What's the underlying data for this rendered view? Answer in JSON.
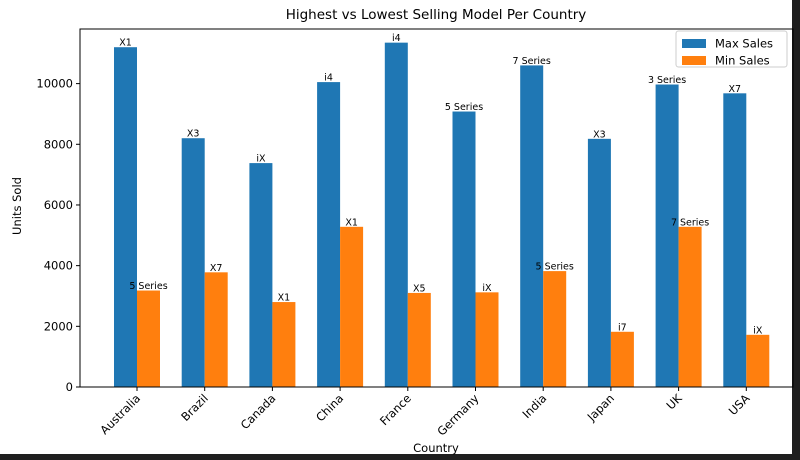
{
  "chart_data": {
    "type": "bar",
    "title": "Highest vs Lowest Selling Model Per Country",
    "xlabel": "Country",
    "ylabel": "Units Sold",
    "categories": [
      "Australia",
      "Brazil",
      "Canada",
      "China",
      "France",
      "Germany",
      "India",
      "Japan",
      "UK",
      "USA"
    ],
    "ylim": [
      0,
      11800
    ],
    "yticks": [
      0,
      2000,
      4000,
      6000,
      8000,
      10000
    ],
    "grid": false,
    "legend_position": "top-right",
    "series": [
      {
        "name": "Max Sales",
        "color": "#1f77b4",
        "values": [
          11200,
          8200,
          7380,
          10050,
          11350,
          9080,
          10600,
          8180,
          9970,
          9680
        ],
        "bar_labels": [
          "X1",
          "X3",
          "iX",
          "i4",
          "i4",
          "5 Series",
          "7 Series",
          "X3",
          "3 Series",
          "X7"
        ]
      },
      {
        "name": "Min Sales",
        "color": "#ff7f0e",
        "values": [
          3180,
          3780,
          2800,
          5280,
          3100,
          3120,
          3820,
          1820,
          5280,
          1720
        ],
        "bar_labels": [
          "5 Series",
          "X7",
          "X1",
          "X1",
          "X5",
          "iX",
          "5 Series",
          "i7",
          "7 Series",
          "iX"
        ]
      }
    ]
  }
}
